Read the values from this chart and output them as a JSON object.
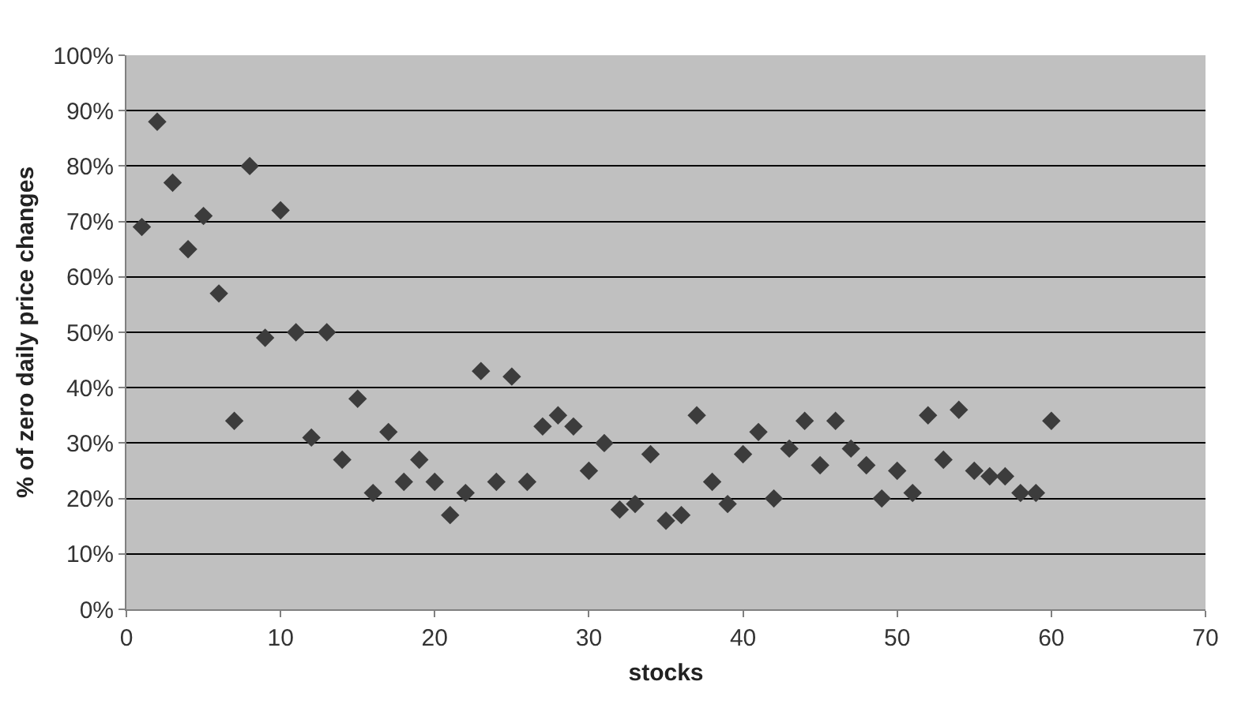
{
  "chart_data": {
    "type": "scatter",
    "xlabel": "stocks",
    "ylabel": "% of zero daily price changes",
    "x": [
      1,
      2,
      3,
      4,
      5,
      6,
      7,
      8,
      9,
      10,
      11,
      12,
      13,
      14,
      15,
      16,
      17,
      18,
      19,
      20,
      21,
      22,
      23,
      24,
      25,
      26,
      27,
      28,
      29,
      30,
      31,
      32,
      33,
      34,
      35,
      36,
      37,
      38,
      39,
      40,
      41,
      42,
      43,
      44,
      45,
      46,
      47,
      48,
      49,
      50,
      51,
      52,
      53,
      54,
      55,
      56,
      57,
      58,
      59,
      60
    ],
    "values": [
      69,
      88,
      77,
      65,
      71,
      57,
      34,
      80,
      49,
      72,
      50,
      31,
      50,
      27,
      38,
      21,
      32,
      23,
      27,
      23,
      17,
      21,
      43,
      23,
      42,
      23,
      33,
      35,
      33,
      25,
      30,
      18,
      19,
      28,
      16,
      17,
      35,
      23,
      19,
      28,
      32,
      20,
      29,
      34,
      26,
      34,
      29,
      26,
      20,
      25,
      21,
      35,
      27,
      36,
      25,
      24,
      24,
      21,
      21,
      34
    ],
    "color": "#3c3c3c",
    "marker": "diamond",
    "grid": "y",
    "legend": false,
    "xlim": [
      0,
      70
    ],
    "xticks": [
      0,
      10,
      20,
      30,
      40,
      50,
      60,
      70
    ],
    "ylim": [
      0,
      100
    ],
    "yticks": [
      {
        "value": 0,
        "label": "0%"
      },
      {
        "value": 10,
        "label": "10%"
      },
      {
        "value": 20,
        "label": "20%"
      },
      {
        "value": 30,
        "label": "30%"
      },
      {
        "value": 40,
        "label": "40%"
      },
      {
        "value": 50,
        "label": "50%"
      },
      {
        "value": 60,
        "label": "60%"
      },
      {
        "value": 70,
        "label": "70%"
      },
      {
        "value": 80,
        "label": "80%"
      },
      {
        "value": 90,
        "label": "90%"
      },
      {
        "value": 100,
        "label": "100%"
      }
    ]
  }
}
